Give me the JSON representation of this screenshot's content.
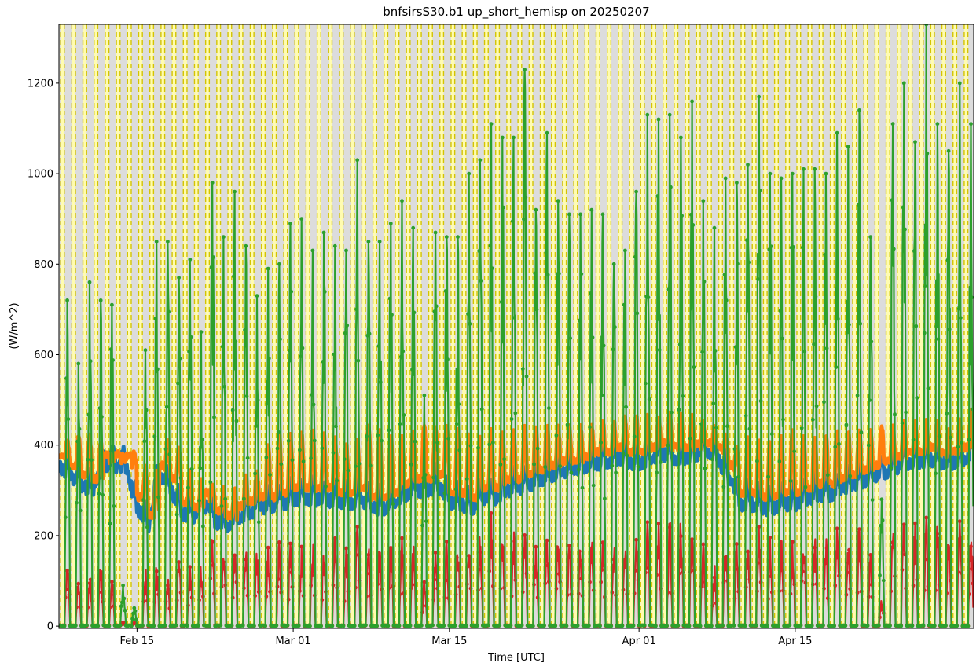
{
  "chart_data": {
    "type": "line",
    "title": "bnfsirsS30.b1 up_short_hemisp on 20250207",
    "xlabel": "Time [UTC]",
    "ylabel": "(W/m^2)",
    "x_range": [
      "2025-02-08",
      "2025-05-01"
    ],
    "ylim": [
      -5,
      1330
    ],
    "y_ticks": [
      0,
      200,
      400,
      600,
      800,
      1000,
      1200
    ],
    "x_ticks": [
      {
        "date": "2025-02-15",
        "label": "Feb 15"
      },
      {
        "date": "2025-03-01",
        "label": "Mar 01"
      },
      {
        "date": "2025-03-15",
        "label": "Mar 15"
      },
      {
        "date": "2025-04-01",
        "label": "Apr 01"
      },
      {
        "date": "2025-04-15",
        "label": "Apr 15"
      }
    ],
    "grid": false,
    "legend": "none",
    "background_shading": {
      "day_color": "#dcdcdc",
      "night_color": "#fffcb0",
      "boundary_color": "#d4c400",
      "boundary_style": "dashed"
    },
    "series": [
      {
        "color": "#1f77b4",
        "description_of_values": "daily baseline level (W/m^2), one value per day from Feb 8",
        "daily_values": [
          350,
          330,
          310,
          300,
          355,
          355,
          350,
          260,
          220,
          330,
          300,
          250,
          240,
          270,
          230,
          220,
          240,
          250,
          260,
          260,
          270,
          280,
          280,
          280,
          280,
          270,
          270,
          280,
          260,
          260,
          270,
          290,
          300,
          300,
          310,
          270,
          270,
          260,
          280,
          280,
          300,
          300,
          310,
          320,
          330,
          340,
          340,
          350,
          360,
          360,
          370,
          360,
          360,
          370,
          380,
          370,
          370,
          380,
          380,
          370,
          330,
          270,
          270,
          260,
          260,
          270,
          270,
          280,
          290,
          290,
          300,
          310,
          320,
          330,
          340,
          350,
          360,
          360,
          370,
          360,
          360,
          370
        ]
      },
      {
        "color": "#ff7f0e",
        "description_of_values": "daily peak level (W/m^2), one value per day from Feb 8",
        "daily_values": [
          410,
          420,
          420,
          400,
          380,
          375,
          380,
          350,
          340,
          410,
          390,
          340,
          320,
          310,
          300,
          300,
          330,
          340,
          400,
          420,
          420,
          430,
          430,
          420,
          410,
          400,
          410,
          440,
          430,
          420,
          420,
          430,
          440,
          440,
          440,
          430,
          420,
          420,
          430,
          430,
          430,
          440,
          440,
          440,
          440,
          440,
          440,
          440,
          450,
          450,
          460,
          460,
          460,
          460,
          470,
          470,
          460,
          450,
          440,
          420,
          390,
          410,
          410,
          410,
          420,
          430,
          420,
          420,
          420,
          430,
          430,
          430,
          430,
          440,
          440,
          450,
          450,
          450,
          450,
          440,
          450,
          470
        ]
      },
      {
        "color": "#2ca02c",
        "description_of_values": "daily maximum (W/m^2), one value per day from Feb 8",
        "daily_values": [
          720,
          580,
          760,
          720,
          710,
          90,
          40,
          610,
          850,
          850,
          770,
          810,
          650,
          980,
          860,
          960,
          840,
          730,
          790,
          800,
          890,
          900,
          830,
          870,
          840,
          830,
          1030,
          850,
          850,
          890,
          940,
          880,
          510,
          870,
          860,
          860,
          1000,
          1030,
          1110,
          1080,
          1080,
          1230,
          920,
          1090,
          940,
          910,
          910,
          920,
          910,
          800,
          830,
          960,
          1130,
          1120,
          1130,
          1080,
          1160,
          940,
          880,
          990,
          980,
          1020,
          1170,
          1000,
          990,
          1000,
          1010,
          1010,
          1000,
          1090,
          1060,
          1140,
          860,
          280,
          1110,
          1200,
          1070,
          1330,
          1110,
          1050,
          1200,
          1110
        ]
      },
      {
        "color": "#d62728",
        "description_of_values": "daily maximum (W/m^2), one value per day from Feb 8",
        "daily_values": [
          150,
          100,
          120,
          150,
          120,
          10,
          10,
          130,
          140,
          130,
          160,
          150,
          140,
          220,
          190,
          200,
          180,
          170,
          180,
          190,
          190,
          180,
          190,
          180,
          200,
          180,
          240,
          190,
          190,
          200,
          200,
          190,
          100,
          190,
          190,
          190,
          230,
          240,
          250,
          230,
          220,
          250,
          200,
          230,
          210,
          200,
          200,
          200,
          200,
          180,
          190,
          210,
          240,
          240,
          240,
          250,
          260,
          200,
          140,
          200,
          200,
          210,
          240,
          200,
          200,
          200,
          210,
          210,
          200,
          230,
          220,
          240,
          170,
          60,
          240,
          250,
          230,
          250,
          240,
          220,
          250,
          230
        ]
      }
    ]
  }
}
